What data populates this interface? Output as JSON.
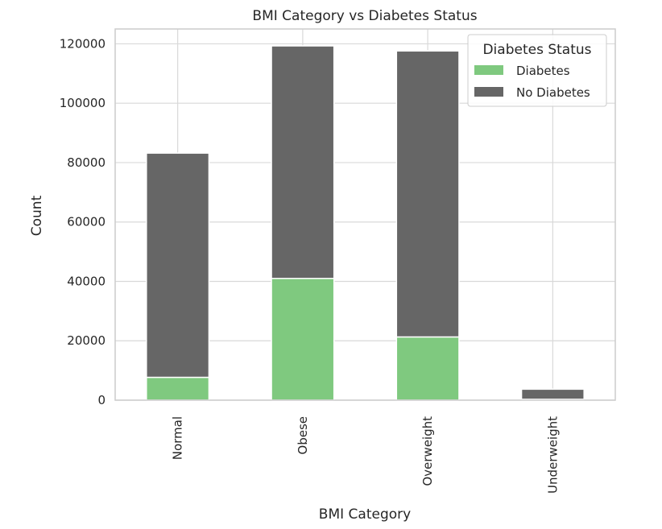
{
  "chart_data": {
    "type": "bar",
    "stacked": true,
    "title": "BMI Category vs Diabetes Status",
    "xlabel": "BMI Category",
    "ylabel": "Count",
    "categories": [
      "Normal",
      "Obese",
      "Overweight",
      "Underweight"
    ],
    "series": [
      {
        "name": "Diabetes",
        "color": "#7fc97f",
        "values": [
          7700,
          41000,
          21300,
          300
        ]
      },
      {
        "name": "No Diabetes",
        "color": "#666666",
        "values": [
          75500,
          78300,
          96300,
          3400
        ]
      }
    ],
    "yticks": [
      0,
      20000,
      40000,
      60000,
      80000,
      100000,
      120000
    ],
    "ylim": [
      0,
      125000
    ],
    "grid": true,
    "legend": {
      "title": "Diabetes Status",
      "position": "upper-right"
    }
  }
}
